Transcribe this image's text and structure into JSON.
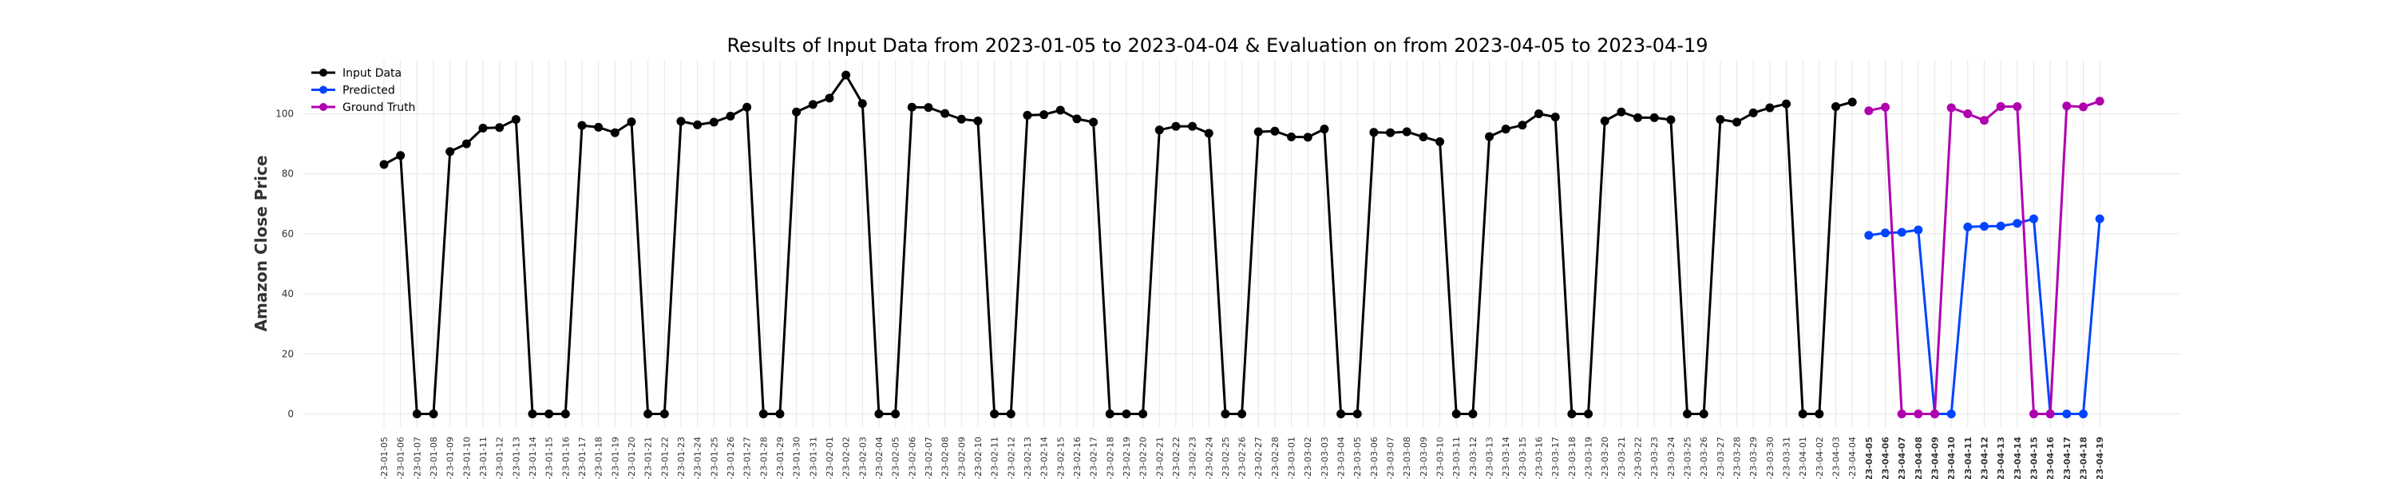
{
  "chart_data": {
    "type": "line",
    "title": "Results of Input Data from 2023-01-05 to 2023-04-04 & Evaluation on from 2023-04-05 to 2023-04-19",
    "xlabel": "",
    "ylabel": "Amazon Close Price",
    "ylim": [
      -5,
      120
    ],
    "yticks": [
      0,
      20,
      40,
      60,
      80,
      100
    ],
    "grid": true,
    "legend_position": "top-left",
    "x": [
      "2023-01-05",
      "2023-01-06",
      "2023-01-07",
      "2023-01-08",
      "2023-01-09",
      "2023-01-10",
      "2023-01-11",
      "2023-01-12",
      "2023-01-13",
      "2023-01-14",
      "2023-01-15",
      "2023-01-16",
      "2023-01-17",
      "2023-01-18",
      "2023-01-19",
      "2023-01-20",
      "2023-01-21",
      "2023-01-22",
      "2023-01-23",
      "2023-01-24",
      "2023-01-25",
      "2023-01-26",
      "2023-01-27",
      "2023-01-28",
      "2023-01-29",
      "2023-01-30",
      "2023-01-31",
      "2023-02-01",
      "2023-02-02",
      "2023-02-03",
      "2023-02-04",
      "2023-02-05",
      "2023-02-06",
      "2023-02-07",
      "2023-02-08",
      "2023-02-09",
      "2023-02-10",
      "2023-02-11",
      "2023-02-12",
      "2023-02-13",
      "2023-02-14",
      "2023-02-15",
      "2023-02-16",
      "2023-02-17",
      "2023-02-18",
      "2023-02-19",
      "2023-02-20",
      "2023-02-21",
      "2023-02-22",
      "2023-02-23",
      "2023-02-24",
      "2023-02-25",
      "2023-02-26",
      "2023-02-27",
      "2023-02-28",
      "2023-03-01",
      "2023-03-02",
      "2023-03-03",
      "2023-03-04",
      "2023-03-05",
      "2023-03-06",
      "2023-03-07",
      "2023-03-08",
      "2023-03-09",
      "2023-03-10",
      "2023-03-11",
      "2023-03-12",
      "2023-03-13",
      "2023-03-14",
      "2023-03-15",
      "2023-03-16",
      "2023-03-17",
      "2023-03-18",
      "2023-03-19",
      "2023-03-20",
      "2023-03-21",
      "2023-03-22",
      "2023-03-23",
      "2023-03-24",
      "2023-03-25",
      "2023-03-26",
      "2023-03-27",
      "2023-03-28",
      "2023-03-29",
      "2023-03-30",
      "2023-03-31",
      "2023-04-01",
      "2023-04-02",
      "2023-04-03",
      "2023-04-04",
      "2023-04-05",
      "2023-04-06",
      "2023-04-07",
      "2023-04-08",
      "2023-04-09",
      "2023-04-10",
      "2023-04-11",
      "2023-04-12",
      "2023-04-13",
      "2023-04-14",
      "2023-04-15",
      "2023-04-16",
      "2023-04-17",
      "2023-04-18",
      "2023-04-19"
    ],
    "tick_labels": [
      "-23-01-05",
      "-23-01-06",
      "-23-01-07",
      "-23-01-08",
      "-23-01-09",
      "-23-01-10",
      "-23-01-11",
      "-23-01-12",
      "-23-01-13",
      "-23-01-14",
      "-23-01-15",
      "-23-01-16",
      "-23-01-17",
      "-23-01-18",
      "-23-01-19",
      "-23-01-20",
      "-23-01-21",
      "-23-01-22",
      "-23-01-23",
      "-23-01-24",
      "-23-01-25",
      "-23-01-26",
      "-23-01-27",
      "-23-01-28",
      "-23-01-29",
      "-23-01-30",
      "-23-01-31",
      "-23-02-01",
      "-23-02-02",
      "-23-02-03",
      "-23-02-04",
      "-23-02-05",
      "-23-02-06",
      "-23-02-07",
      "-23-02-08",
      "-23-02-09",
      "-23-02-10",
      "-23-02-11",
      "-23-02-12",
      "-23-02-13",
      "-23-02-14",
      "-23-02-15",
      "-23-02-16",
      "-23-02-17",
      "-23-02-18",
      "-23-02-19",
      "-23-02-20",
      "-23-02-21",
      "-23-02-22",
      "-23-02-23",
      "-23-02-24",
      "-23-02-25",
      "-23-02-26",
      "-23-02-27",
      "-23-02-28",
      "-23-03-01",
      "-23-03-02",
      "-23-03-03",
      "-23-03-04",
      "-23-03-05",
      "-23-03-06",
      "-23-03-07",
      "-23-03-08",
      "-23-03-09",
      "-23-03-10",
      "-23-03-11",
      "-23-03-12",
      "-23-03-13",
      "-23-03-14",
      "-23-03-15",
      "-23-03-16",
      "-23-03-17",
      "-23-03-18",
      "-23-03-19",
      "-23-03-20",
      "-23-03-21",
      "-23-03-22",
      "-23-03-23",
      "-23-03-24",
      "-23-03-25",
      "-23-03-26",
      "-23-03-27",
      "-23-03-28",
      "-23-03-29",
      "-23-03-30",
      "-23-03-31",
      "-23-04-01",
      "-23-04-02",
      "-23-04-03",
      "-23-04-04",
      "-23-04-05",
      "-23-04-06",
      "-23-04-07",
      "-23-04-08",
      "-23-04-09",
      "-23-04-10",
      "-23-04-11",
      "-23-04-12",
      "-23-04-13",
      "-23-04-14",
      "-23-04-15",
      "-23-04-16",
      "-23-04-17",
      "-23-04-18",
      "-23-04-19"
    ],
    "bold_ticks_from": "2023-04-05",
    "series": [
      {
        "name": "Input Data",
        "color": "#000000",
        "x": [
          "2023-01-05",
          "2023-01-06",
          "2023-01-07",
          "2023-01-08",
          "2023-01-09",
          "2023-01-10",
          "2023-01-11",
          "2023-01-12",
          "2023-01-13",
          "2023-01-14",
          "2023-01-15",
          "2023-01-16",
          "2023-01-17",
          "2023-01-18",
          "2023-01-19",
          "2023-01-20",
          "2023-01-21",
          "2023-01-22",
          "2023-01-23",
          "2023-01-24",
          "2023-01-25",
          "2023-01-26",
          "2023-01-27",
          "2023-01-28",
          "2023-01-29",
          "2023-01-30",
          "2023-01-31",
          "2023-02-01",
          "2023-02-02",
          "2023-02-03",
          "2023-02-04",
          "2023-02-05",
          "2023-02-06",
          "2023-02-07",
          "2023-02-08",
          "2023-02-09",
          "2023-02-10",
          "2023-02-11",
          "2023-02-12",
          "2023-02-13",
          "2023-02-14",
          "2023-02-15",
          "2023-02-16",
          "2023-02-17",
          "2023-02-18",
          "2023-02-19",
          "2023-02-20",
          "2023-02-21",
          "2023-02-22",
          "2023-02-23",
          "2023-02-24",
          "2023-02-25",
          "2023-02-26",
          "2023-02-27",
          "2023-02-28",
          "2023-03-01",
          "2023-03-02",
          "2023-03-03",
          "2023-03-04",
          "2023-03-05",
          "2023-03-06",
          "2023-03-07",
          "2023-03-08",
          "2023-03-09",
          "2023-03-10",
          "2023-03-11",
          "2023-03-12",
          "2023-03-13",
          "2023-03-14",
          "2023-03-15",
          "2023-03-16",
          "2023-03-17",
          "2023-03-18",
          "2023-03-19",
          "2023-03-20",
          "2023-03-21",
          "2023-03-22",
          "2023-03-23",
          "2023-03-24",
          "2023-03-25",
          "2023-03-26",
          "2023-03-27",
          "2023-03-28",
          "2023-03-29",
          "2023-03-30",
          "2023-03-31",
          "2023-04-01",
          "2023-04-02",
          "2023-04-03",
          "2023-04-04"
        ],
        "values": [
          83.1,
          86.1,
          0,
          0,
          87.4,
          90.0,
          95.2,
          95.4,
          98.1,
          0,
          0,
          0,
          96.1,
          95.5,
          93.7,
          97.3,
          0,
          0,
          97.5,
          96.3,
          97.2,
          99.2,
          102.2,
          0,
          0,
          100.6,
          103.1,
          105.2,
          112.9,
          103.4,
          0,
          0,
          102.2,
          102.1,
          100.1,
          98.2,
          97.6,
          0,
          0,
          99.5,
          99.7,
          101.2,
          98.3,
          97.2,
          0,
          0,
          0,
          94.6,
          95.8,
          95.8,
          93.5,
          0,
          0,
          94.0,
          94.2,
          92.3,
          92.2,
          94.9,
          0,
          0,
          93.8,
          93.7,
          94.0,
          92.3,
          90.7,
          0,
          0,
          92.4,
          94.9,
          96.2,
          100.0,
          98.9,
          0,
          0,
          97.6,
          100.6,
          98.7,
          98.7,
          98.0,
          0,
          0,
          98.1,
          97.2,
          100.3,
          102.0,
          103.3,
          0,
          0,
          102.4,
          103.9
        ]
      },
      {
        "name": "Predicted",
        "color": "#0044ff",
        "x": [
          "2023-04-05",
          "2023-04-06",
          "2023-04-07",
          "2023-04-08",
          "2023-04-09",
          "2023-04-10",
          "2023-04-11",
          "2023-04-12",
          "2023-04-13",
          "2023-04-14",
          "2023-04-15",
          "2023-04-16",
          "2023-04-17",
          "2023-04-18",
          "2023-04-19"
        ],
        "values": [
          59.5,
          60.3,
          60.5,
          61.3,
          0,
          0,
          62.3,
          62.5,
          62.6,
          63.5,
          65.0,
          0,
          0,
          0,
          65.0
        ]
      },
      {
        "name": "Ground Truth",
        "color": "#b000b0",
        "x": [
          "2023-04-05",
          "2023-04-06",
          "2023-04-07",
          "2023-04-08",
          "2023-04-09",
          "2023-04-10",
          "2023-04-11",
          "2023-04-12",
          "2023-04-13",
          "2023-04-14",
          "2023-04-15",
          "2023-04-16",
          "2023-04-17",
          "2023-04-18",
          "2023-04-19"
        ],
        "values": [
          101.0,
          102.2,
          0,
          0,
          0,
          102.0,
          100.0,
          97.8,
          102.4,
          102.4,
          0,
          0,
          102.6,
          102.3,
          104.2
        ]
      }
    ]
  }
}
